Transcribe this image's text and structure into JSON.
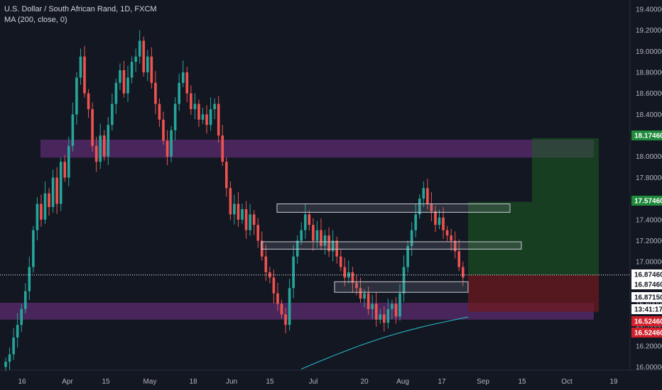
{
  "legend": {
    "symbol_line": "U.S. Dollar / South African Rand, 1D, FXCM",
    "indicator_line": "MA (200, close, 0)"
  },
  "colors": {
    "background": "#131722",
    "up": "#26a69a",
    "down": "#ef5350",
    "ma": "#26a7b8",
    "zone": "#5b2c6f",
    "target_zone": "#1b5e20",
    "stop_zone": "#6d1a1f",
    "tag_green": "#1e8a3a",
    "tag_red": "#d3202b",
    "tag_white": "#ffffff"
  },
  "chart_data": {
    "type": "candlestick",
    "title": "U.S. Dollar / South African Rand, 1D, FXCM",
    "indicator": "MA (200, close, 0)",
    "x_ticks": [
      "16",
      "Apr",
      "15",
      "May",
      "18",
      "Jun",
      "15",
      "Jul",
      "20",
      "Aug",
      "17",
      "Sep",
      "15",
      "Oct",
      "19"
    ],
    "y_ticks": [
      "16.00000",
      "16.20000",
      "16.40000",
      "16.60000",
      "16.80000",
      "17.00000",
      "17.20000",
      "17.40000",
      "17.60000",
      "17.80000",
      "18.00000",
      "18.20000",
      "18.40000",
      "18.60000",
      "18.80000",
      "19.00000",
      "19.20000",
      "19.40000"
    ],
    "y_range": [
      15.97,
      19.42
    ],
    "closes": [
      16.05,
      16.12,
      16.28,
      16.4,
      16.55,
      16.72,
      16.95,
      17.3,
      17.55,
      17.4,
      17.65,
      17.52,
      17.8,
      17.55,
      17.95,
      17.8,
      18.1,
      18.4,
      18.75,
      18.95,
      18.6,
      18.45,
      18.1,
      17.95,
      18.2,
      18.0,
      18.3,
      18.5,
      18.7,
      18.82,
      18.6,
      18.75,
      18.9,
      18.95,
      19.1,
      18.8,
      18.95,
      18.7,
      18.5,
      18.35,
      18.15,
      18.0,
      18.25,
      18.5,
      18.7,
      18.8,
      18.6,
      18.45,
      18.5,
      18.35,
      18.4,
      18.3,
      18.45,
      18.5,
      18.2,
      17.95,
      17.7,
      17.45,
      17.55,
      17.4,
      17.5,
      17.3,
      17.45,
      17.35,
      17.2,
      17.05,
      16.9,
      16.85,
      16.7,
      16.6,
      16.5,
      16.4,
      16.75,
      17.05,
      17.2,
      17.3,
      17.45,
      17.35,
      17.2,
      17.3,
      17.15,
      17.25,
      17.1,
      17.2,
      17.05,
      16.95,
      16.85,
      16.9,
      16.8,
      16.75,
      16.65,
      16.7,
      16.55,
      16.6,
      16.45,
      16.5,
      16.42,
      16.55,
      16.6,
      16.48,
      16.7,
      16.95,
      17.15,
      17.3,
      17.45,
      17.6,
      17.7,
      17.55,
      17.48,
      17.35,
      17.42,
      17.3,
      17.25,
      17.2,
      17.1,
      16.95,
      16.85
    ],
    "ma_200": {
      "start_value": 15.98,
      "end_value": 16.53
    },
    "last_price": "16.87460",
    "price_tags": [
      {
        "label": "18.17460",
        "style": "green"
      },
      {
        "label": "17.57460",
        "style": "green"
      },
      {
        "label": "16.87460",
        "style": "white"
      },
      {
        "label": "16.87460",
        "style": "plain"
      },
      {
        "label": "16.87150",
        "style": "plain"
      },
      {
        "label": "13:41:17",
        "style": "plain"
      },
      {
        "label": "16.52460",
        "style": "red"
      },
      {
        "label": "16.52460",
        "style": "red"
      }
    ],
    "zones": [
      {
        "name": "resistance-zone",
        "price_low": 17.99,
        "price_high": 18.16
      },
      {
        "name": "support-zone",
        "price_low": 16.45,
        "price_high": 16.61
      }
    ],
    "boxes": [
      {
        "name": "box-upper",
        "price_low": 17.47,
        "price_high": 17.55
      },
      {
        "name": "box-mid",
        "price_low": 17.12,
        "price_high": 17.19
      },
      {
        "name": "box-lower",
        "price_low": 16.71,
        "price_high": 16.81
      }
    ],
    "position": {
      "entry": 16.8746,
      "target": 18.1746,
      "stop": 16.5246
    }
  }
}
